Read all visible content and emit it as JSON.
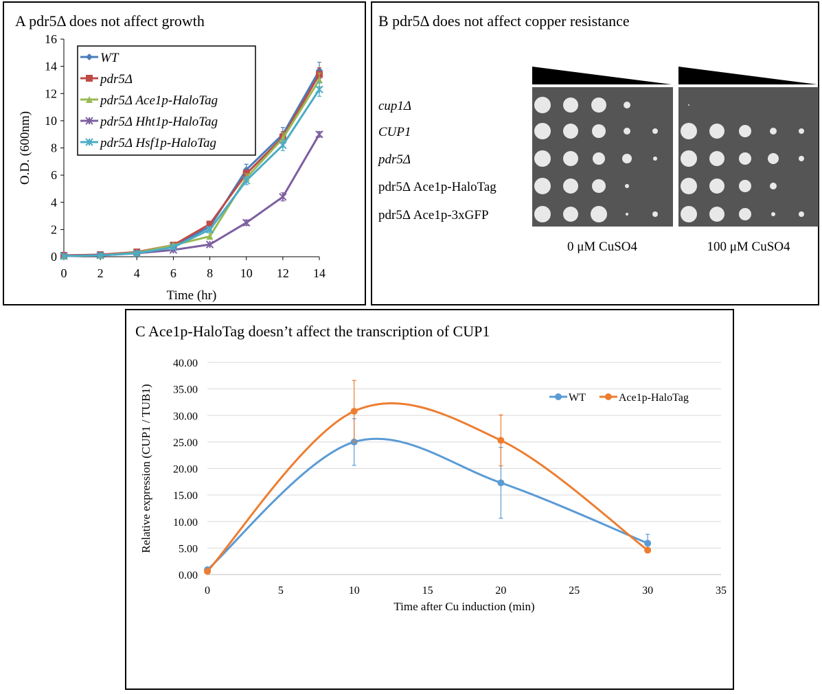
{
  "chart_data": [
    {
      "type": "line",
      "title": "A pdr5Δ does not affect growth",
      "x_label": "Time (hr)",
      "y_label": "O.D. (600nm)",
      "x": [
        0,
        2,
        4,
        6,
        8,
        10,
        12,
        14
      ],
      "xlim": [
        0,
        14
      ],
      "xticks": [
        0,
        2,
        4,
        6,
        8,
        10,
        12,
        14
      ],
      "ylim": [
        0,
        16
      ],
      "yticks": [
        0,
        2,
        4,
        6,
        8,
        10,
        12,
        14,
        16
      ],
      "legend": "upper left",
      "smooth": false,
      "series": [
        {
          "name": "WT",
          "color": "#4a7ebb",
          "marker": "diamond",
          "values": [
            0.1,
            0.15,
            0.3,
            0.8,
            2.2,
            6.4,
            9.0,
            13.7
          ],
          "errors": [
            0.05,
            0.05,
            0.1,
            0.1,
            0.2,
            0.4,
            0.5,
            0.6
          ]
        },
        {
          "name": "pdr5Δ",
          "color": "#be4b48",
          "marker": "square",
          "values": [
            0.1,
            0.15,
            0.35,
            0.85,
            2.4,
            6.1,
            8.8,
            13.4
          ],
          "errors": [
            0.05,
            0.05,
            0.1,
            0.1,
            0.2,
            0.3,
            0.4,
            0.5
          ]
        },
        {
          "name": "pdr5Δ Ace1p-HaloTag",
          "color": "#98b954",
          "marker": "triangle",
          "values": [
            0.05,
            0.1,
            0.3,
            0.85,
            1.5,
            5.8,
            8.7,
            13.0
          ],
          "errors": [
            0.05,
            0.05,
            0.1,
            0.1,
            0.2,
            0.3,
            0.4,
            0.5
          ]
        },
        {
          "name": "pdr5Δ Hht1p-HaloTag",
          "color": "#7d5fa0",
          "marker": "x",
          "values": [
            0.05,
            0.1,
            0.25,
            0.5,
            0.9,
            2.5,
            4.4,
            9.0
          ],
          "errors": [
            0.05,
            0.05,
            0.05,
            0.1,
            0.1,
            0.2,
            0.3,
            0.2
          ]
        },
        {
          "name": "pdr5Δ Hsf1p-HaloTag",
          "color": "#4bacc6",
          "marker": "x",
          "values": [
            0.05,
            0.1,
            0.25,
            0.7,
            2.0,
            5.6,
            8.2,
            12.3
          ],
          "errors": [
            0.05,
            0.05,
            0.05,
            0.1,
            0.2,
            0.3,
            0.4,
            0.5
          ]
        }
      ]
    },
    {
      "type": "line",
      "title": "C Ace1p-HaloTag doesn’t affect the transcription of CUP1",
      "x_label": "Time after Cu induction (min)",
      "y_label": "Relative expression (CUP1 / TUB1)",
      "x": [
        0,
        10,
        20,
        30
      ],
      "xlim": [
        0,
        35
      ],
      "xticks": [
        0,
        5,
        10,
        15,
        20,
        25,
        30,
        35
      ],
      "ylim": [
        0,
        40
      ],
      "yticks": [
        {
          "value": 0,
          "label": "0.00"
        },
        {
          "value": 5,
          "label": "5.00"
        },
        {
          "value": 10,
          "label": "10.00"
        },
        {
          "value": 15,
          "label": "15.00"
        },
        {
          "value": 20,
          "label": "20.00"
        },
        {
          "value": 25,
          "label": "25.00"
        },
        {
          "value": 30,
          "label": "30.00"
        },
        {
          "value": 35,
          "label": "35.00"
        },
        {
          "value": 40,
          "label": "40.00"
        }
      ],
      "grid": true,
      "legend": "upper right",
      "smooth": true,
      "series": [
        {
          "name": "WT",
          "color": "#5b9bd5",
          "marker": "circle",
          "values": [
            0.9,
            25.0,
            17.3,
            5.9
          ],
          "errors": [
            0,
            4.4,
            6.7,
            1.7
          ]
        },
        {
          "name": "Ace1p-HaloTag",
          "color": "#ed7d31",
          "marker": "circle",
          "values": [
            0.6,
            30.8,
            25.3,
            4.6
          ],
          "errors": [
            0,
            5.8,
            4.8,
            0.5
          ]
        }
      ]
    }
  ],
  "panel_b": {
    "title": "B pdr5Δ does not affect copper resistance",
    "rows": [
      "cup1Δ",
      "CUP1",
      "pdr5Δ",
      "pdr5Δ Ace1p-HaloTag",
      "pdr5Δ Ace1p-3xGFP"
    ],
    "columns": [
      "0 μM CuSO4",
      "100 μM CuSO4"
    ]
  }
}
